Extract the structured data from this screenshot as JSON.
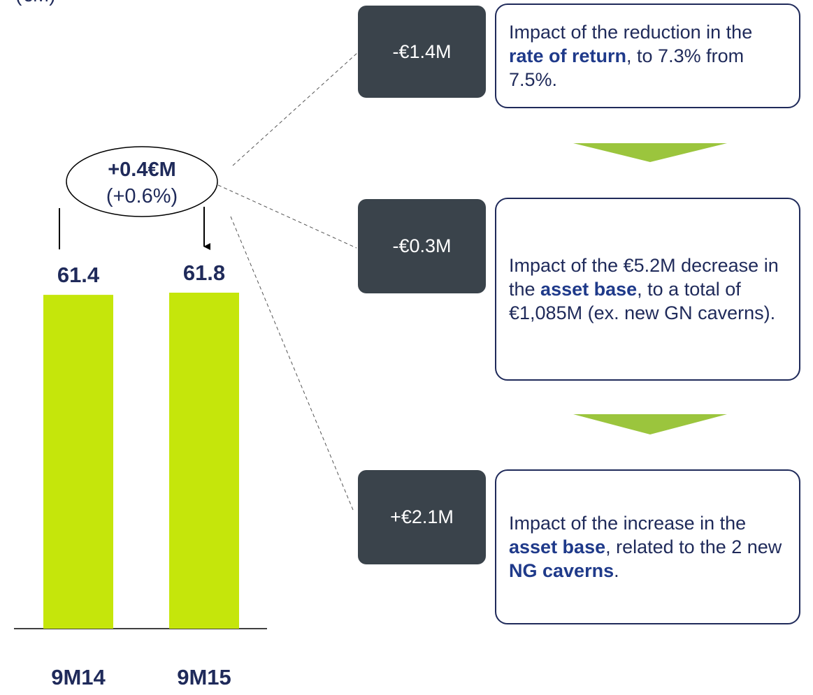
{
  "chart_data": {
    "type": "bar",
    "subtitle": "(€M)",
    "categories": [
      "9M14",
      "9M15"
    ],
    "values": [
      61.4,
      61.8
    ],
    "color": "#c5e60b",
    "annotation": {
      "change": "+0.4€M",
      "percent": "(+0.6%)"
    }
  },
  "drivers": [
    {
      "amount": "-€1.4M",
      "text": [
        {
          "t": "Impact of the reduction in the "
        },
        {
          "t": "rate of return",
          "bold": true
        },
        {
          "t": ", to 7.3% from 7.5%."
        }
      ]
    },
    {
      "amount": "-€0.3M",
      "text": [
        {
          "t": "Impact of the €5.2M decrease in the "
        },
        {
          "t": "asset base",
          "bold": true
        },
        {
          "t": ", to a total of €1,085M (ex. new GN caverns)."
        }
      ]
    },
    {
      "amount": "+€2.1M",
      "text": [
        {
          "t": "Impact of the increase in the "
        },
        {
          "t": "asset base",
          "bold": true
        },
        {
          "t": ", related to the 2 new "
        },
        {
          "t": "NG caverns",
          "bold": true
        },
        {
          "t": "."
        }
      ]
    }
  ]
}
